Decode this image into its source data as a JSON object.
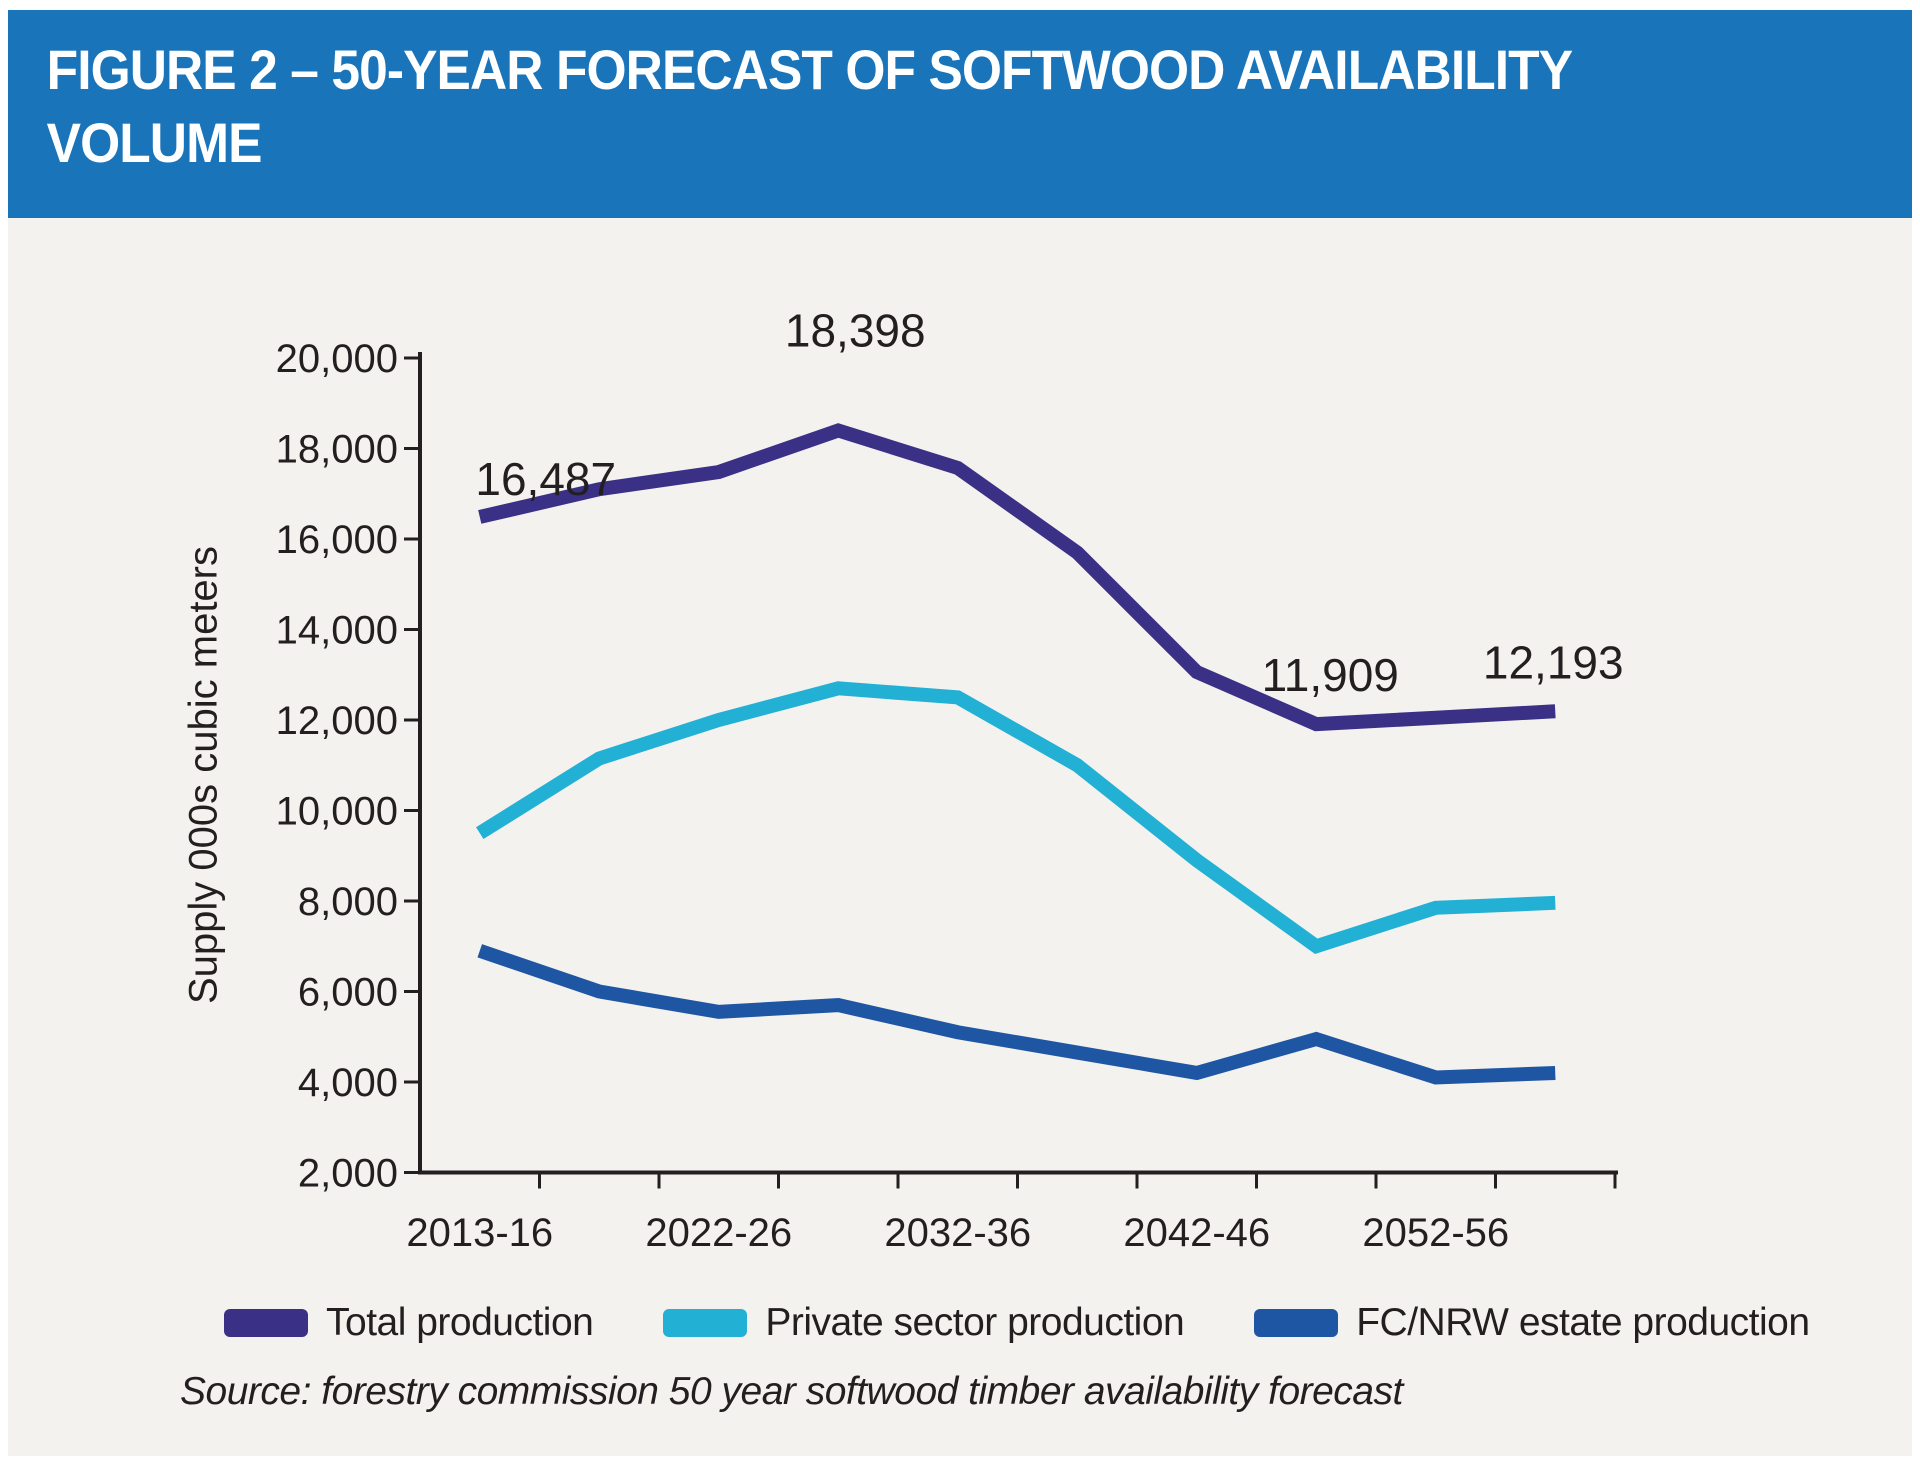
{
  "header": {
    "title_line1": "FIGURE 2 – 50-YEAR FORECAST OF SOFTWOOD AVAILABILITY",
    "title_line2": "VOLUME"
  },
  "colors": {
    "header_bg": "#1a74ba",
    "panel_bg": "#f4f2ee",
    "page_bg": "#ffffff",
    "text": "#231f20",
    "axis": "#231f20",
    "total_production": "#3a3187",
    "private_sector_production": "#22b0d5",
    "fc_nrw_estate_production": "#1f56a4"
  },
  "chart_data": {
    "type": "line",
    "title": "FIGURE 2 – 50-YEAR FORECAST OF SOFTWOOD AVAILABILITY VOLUME",
    "xlabel": "",
    "ylabel": "Supply 000s cubic meters",
    "ylim": [
      2000,
      20000
    ],
    "y_tick_step": 2000,
    "y_tick_labels": [
      "2,000",
      "4,000",
      "6,000",
      "8,000",
      "10,000",
      "12,000",
      "14,000",
      "16,000",
      "18,000",
      "20,000"
    ],
    "grid": false,
    "legend_position": "bottom",
    "num_points": 10,
    "categories": [
      "2013-16",
      "2022-26",
      "2032-36",
      "2042-46",
      "2052-56"
    ],
    "x_label_indices": [
      0,
      2,
      4,
      6,
      8
    ],
    "series": [
      {
        "name": "Total production",
        "color": "#3a3187",
        "values": [
          16487,
          17100,
          17480,
          18398,
          17570,
          15700,
          13060,
          11909,
          12050,
          12193
        ]
      },
      {
        "name": "Private sector production",
        "color": "#22b0d5",
        "values": [
          9500,
          11150,
          12000,
          12700,
          12500,
          11000,
          8900,
          7000,
          7850,
          7960
        ]
      },
      {
        "name": "FC/NRW estate production",
        "color": "#1f56a4",
        "values": [
          6900,
          6000,
          5550,
          5700,
          5100,
          4650,
          4200,
          4950,
          4100,
          4200
        ]
      }
    ],
    "annotations": [
      {
        "series": 0,
        "point": 0,
        "text": "16,487"
      },
      {
        "series": 0,
        "point": 3,
        "text": "18,398"
      },
      {
        "series": 0,
        "point": 7,
        "text": "11,909"
      },
      {
        "series": 0,
        "point": 9,
        "text": "12,193"
      }
    ]
  },
  "legend": {
    "items": [
      "Total production",
      "Private sector production",
      "FC/NRW estate production"
    ]
  },
  "source": {
    "text": "Source: forestry commission 50 year softwood timber availability forecast"
  }
}
